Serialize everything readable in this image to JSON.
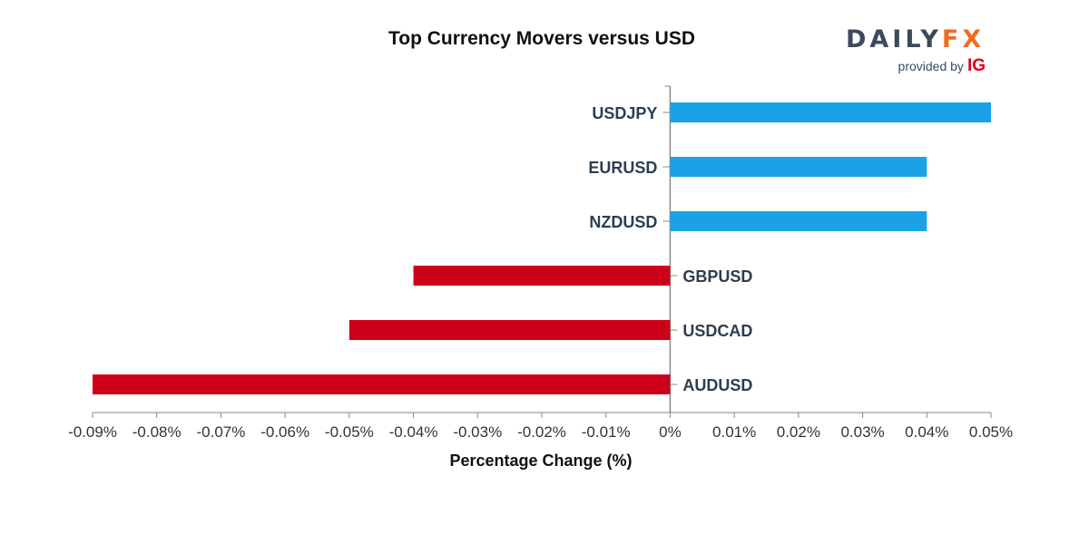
{
  "brand": {
    "name_part1": "DAILY",
    "name_part2": "FX",
    "provided_by": "provided by",
    "ig": "IG"
  },
  "colors": {
    "positive": "#1ba1e6",
    "negative": "#cd001a",
    "axis": "#888888"
  },
  "chart_data": {
    "type": "bar",
    "orientation": "horizontal",
    "title": "Top Currency Movers versus USD",
    "xlabel": "Percentage Change (%)",
    "ylabel": "",
    "xlim": [
      -0.09,
      0.05
    ],
    "categories": [
      "USDJPY",
      "EURUSD",
      "NZDUSD",
      "GBPUSD",
      "USDCAD",
      "AUDUSD"
    ],
    "values": [
      0.05,
      0.04,
      0.04,
      -0.04,
      -0.05,
      -0.09
    ],
    "ticks": [
      -0.09,
      -0.08,
      -0.07,
      -0.06,
      -0.05,
      -0.04,
      -0.03,
      -0.02,
      -0.01,
      0,
      0.01,
      0.02,
      0.03,
      0.04,
      0.05
    ],
    "tick_labels": [
      "-0.09%",
      "-0.08%",
      "-0.07%",
      "-0.06%",
      "-0.05%",
      "-0.04%",
      "-0.03%",
      "-0.02%",
      "-0.01%",
      "0%",
      "0.01%",
      "0.02%",
      "0.03%",
      "0.04%",
      "0.05%"
    ],
    "grid": false,
    "legend": "none"
  }
}
